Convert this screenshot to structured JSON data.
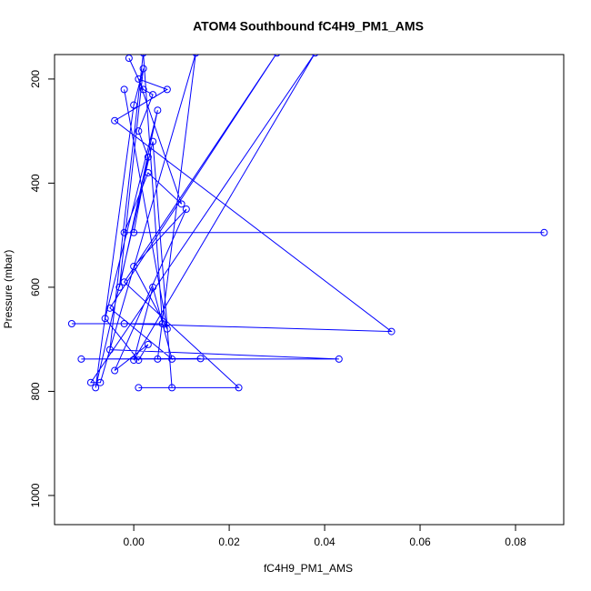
{
  "chart_data": {
    "type": "line",
    "markers": true,
    "color": "#0000ff",
    "title": "ATOM4 Southbound fC4H9_PM1_AMS",
    "x_label": "fC4H9_PM1_AMS",
    "y_label": "Pressure (mbar)",
    "x": [
      -0.001,
      0.002,
      0.004,
      0.001,
      0.003,
      0.0,
      0.086,
      -0.002,
      0.003,
      0.01,
      0.001,
      0.007,
      -0.004,
      0.054,
      -0.002,
      -0.013,
      0.006,
      0.002,
      -0.005,
      0.043,
      -0.011,
      0.014,
      0.005,
      0.013,
      -0.007,
      -0.009,
      0.038,
      0.0,
      0.004,
      0.008,
      -0.005,
      0.03,
      -0.002,
      0.022,
      0.001,
      0.008,
      0.004,
      -0.008,
      0.0,
      0.002,
      -0.003,
      0.005,
      -0.006,
      0.001,
      0.003,
      -0.004,
      0.011,
      0.0,
      0.007,
      -0.002
    ],
    "values": [
      160,
      220,
      230,
      300,
      350,
      495,
      495,
      495,
      380,
      440,
      200,
      220,
      280,
      685,
      670,
      670,
      670,
      150,
      720,
      738,
      738,
      737,
      738,
      150,
      783,
      783,
      150,
      740,
      600,
      738,
      640,
      150,
      590,
      793,
      793,
      793,
      320,
      793,
      250,
      180,
      600,
      260,
      660,
      740,
      710,
      760,
      450,
      560,
      680,
      220
    ],
    "xlim": [
      -0.0166,
      0.0901
    ],
    "ylim": [
      1056,
      153
    ],
    "xticks": [
      {
        "value": 0,
        "label": "0.00"
      },
      {
        "value": 0.02,
        "label": "0.02"
      },
      {
        "value": 0.04,
        "label": "0.04"
      },
      {
        "value": 0.06,
        "label": "0.06"
      },
      {
        "value": 0.08,
        "label": "0.08"
      }
    ],
    "yticks": [
      200,
      400,
      600,
      800,
      1000
    ]
  }
}
